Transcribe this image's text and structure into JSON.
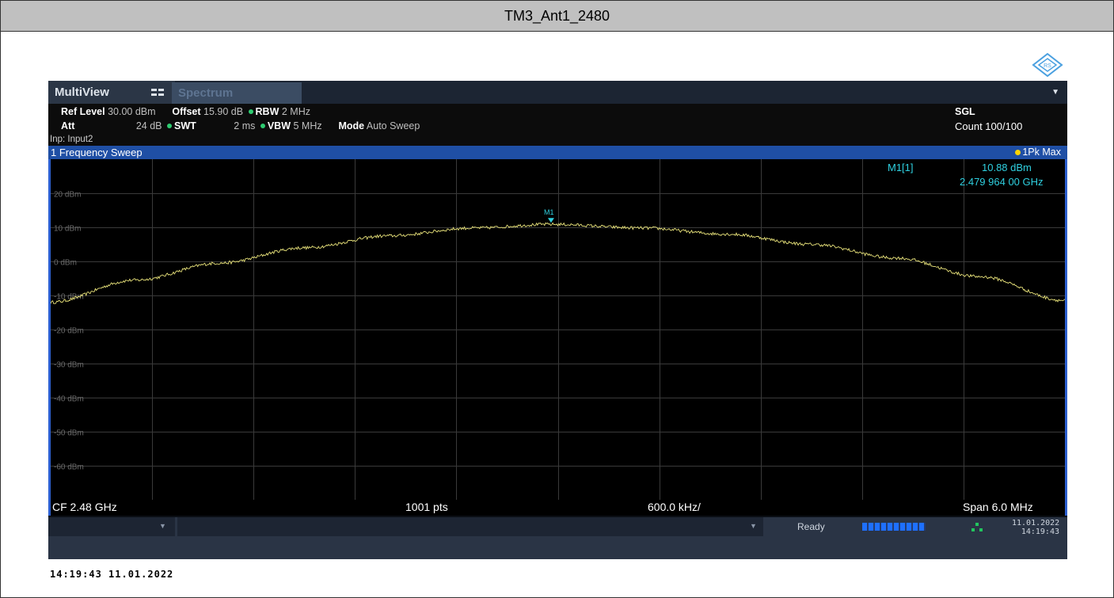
{
  "title": "TM3_Ant1_2480",
  "logo_icon": "rohde-schwarz-logo-icon",
  "tabs": {
    "multiview": "MultiView",
    "spectrum": "Spectrum"
  },
  "params": {
    "ref_level_label": "Ref Level",
    "ref_level": "30.00 dBm",
    "offset_label": "Offset",
    "offset": "15.90 dB",
    "rbw_label": "RBW",
    "rbw": "2 MHz",
    "att_label": "Att",
    "att": "24 dB",
    "swt_label": "SWT",
    "swt": "2 ms",
    "vbw_label": "VBW",
    "vbw": "5 MHz",
    "mode_label": "Mode",
    "mode": "Auto Sweep",
    "input": "Inp: Input2",
    "sgl": "SGL",
    "count": "Count 100/100"
  },
  "sweep": {
    "title": "1 Frequency Sweep",
    "trace_label": "1Pk Max"
  },
  "marker": {
    "label": "M1[1]",
    "level": "10.88 dBm",
    "freq": "2.479 964 00 GHz",
    "name": "M1"
  },
  "bottom": {
    "cf": "CF 2.48 GHz",
    "pts": "1001 pts",
    "div": "600.0 kHz/",
    "span": "Span 6.0 MHz"
  },
  "status": {
    "ready": "Ready",
    "progress": 1.0,
    "date": "11.01.2022",
    "time": "14:19:43"
  },
  "footer": "14:19:43  11.01.2022",
  "colors": {
    "trace": "#e8e27a",
    "marker": "#2fd0e0",
    "grid": "#3a3a3a",
    "accent": "#1f4fa5"
  },
  "chart_data": {
    "type": "line",
    "xlabel": "",
    "ylabel": "",
    "x_range_ghz": [
      2.477,
      2.483
    ],
    "ylim": [
      -70,
      30
    ],
    "ytick_labels": [
      "20 dBm",
      "10 dBm",
      "0 dBm",
      "-10 dBm",
      "-20 dBm",
      "-30 dBm",
      "-40 dBm",
      "-50 dBm",
      "-60 dBm"
    ],
    "ytick_values": [
      20,
      10,
      0,
      -10,
      -20,
      -30,
      -40,
      -50,
      -60
    ],
    "x_divisions": 10,
    "series": [
      {
        "x": [
          2.477,
          2.4775,
          2.478,
          2.4785,
          2.479,
          2.4795,
          2.47996,
          2.4805,
          2.481,
          2.4815,
          2.482,
          2.4825,
          2.483
        ],
        "values": [
          -12,
          -5.5,
          -0.5,
          4,
          7.5,
          9.8,
          10.88,
          9.8,
          8,
          5,
          1,
          -4.5,
          -11.5
        ]
      }
    ]
  }
}
